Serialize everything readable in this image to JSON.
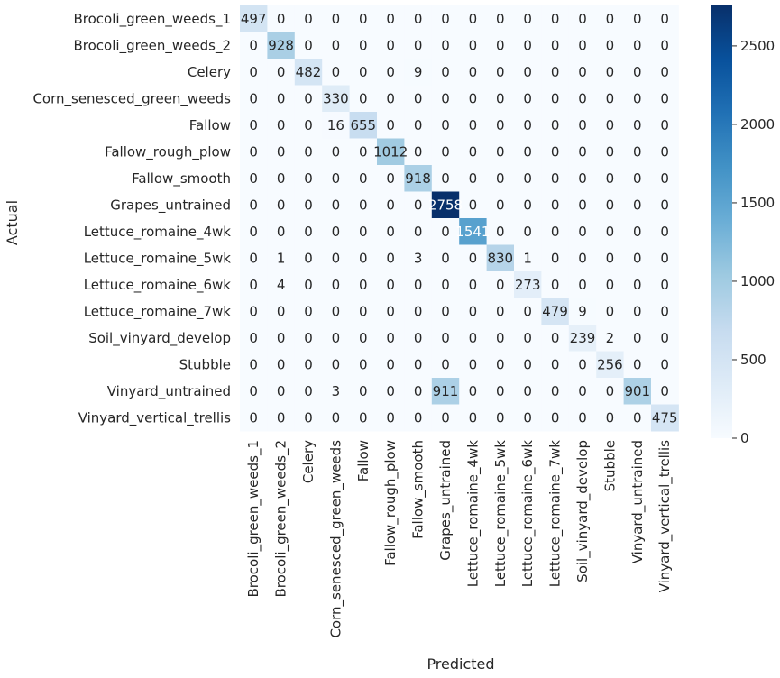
{
  "chart_data": {
    "type": "heatmap",
    "title": "",
    "xlabel": "Predicted",
    "ylabel": "Actual",
    "colormap": "Blues",
    "colors": {
      "low": "#f7fbff",
      "high": "#08306b",
      "text_dark": "#262626",
      "text_light": "#ffffff"
    },
    "vmin": 0,
    "vmax": 2758,
    "colorbar_ticks": [
      0,
      500,
      1000,
      1500,
      2000,
      2500
    ],
    "categories": [
      "Brocoli_green_weeds_1",
      "Brocoli_green_weeds_2",
      "Celery",
      "Corn_senesced_green_weeds",
      "Fallow",
      "Fallow_rough_plow",
      "Fallow_smooth",
      "Grapes_untrained",
      "Lettuce_romaine_4wk",
      "Lettuce_romaine_5wk",
      "Lettuce_romaine_6wk",
      "Lettuce_romaine_7wk",
      "Soil_vinyard_develop",
      "Stubble",
      "Vinyard_untrained",
      "Vinyard_vertical_trellis"
    ],
    "matrix": [
      [
        497,
        0,
        0,
        0,
        0,
        0,
        0,
        0,
        0,
        0,
        0,
        0,
        0,
        0,
        0,
        0
      ],
      [
        0,
        928,
        0,
        0,
        0,
        0,
        0,
        0,
        0,
        0,
        0,
        0,
        0,
        0,
        0,
        0
      ],
      [
        0,
        0,
        482,
        0,
        0,
        0,
        9,
        0,
        0,
        0,
        0,
        0,
        0,
        0,
        0,
        0
      ],
      [
        0,
        0,
        0,
        330,
        0,
        0,
        0,
        0,
        0,
        0,
        0,
        0,
        0,
        0,
        0,
        0
      ],
      [
        0,
        0,
        0,
        16,
        655,
        0,
        0,
        0,
        0,
        0,
        0,
        0,
        0,
        0,
        0,
        0
      ],
      [
        0,
        0,
        0,
        0,
        0,
        1012,
        0,
        0,
        0,
        0,
        0,
        0,
        0,
        0,
        0,
        0
      ],
      [
        0,
        0,
        0,
        0,
        0,
        0,
        918,
        0,
        0,
        0,
        0,
        0,
        0,
        0,
        0,
        0
      ],
      [
        0,
        0,
        0,
        0,
        0,
        0,
        0,
        2758,
        0,
        0,
        0,
        0,
        0,
        0,
        0,
        0
      ],
      [
        0,
        0,
        0,
        0,
        0,
        0,
        0,
        0,
        1541,
        0,
        0,
        0,
        0,
        0,
        0,
        0
      ],
      [
        0,
        1,
        0,
        0,
        0,
        0,
        3,
        0,
        0,
        830,
        1,
        0,
        0,
        0,
        0,
        0
      ],
      [
        0,
        4,
        0,
        0,
        0,
        0,
        0,
        0,
        0,
        0,
        273,
        0,
        0,
        0,
        0,
        0
      ],
      [
        0,
        0,
        0,
        0,
        0,
        0,
        0,
        0,
        0,
        0,
        0,
        479,
        9,
        0,
        0,
        0
      ],
      [
        0,
        0,
        0,
        0,
        0,
        0,
        0,
        0,
        0,
        0,
        0,
        0,
        239,
        2,
        0,
        0
      ],
      [
        0,
        0,
        0,
        0,
        0,
        0,
        0,
        0,
        0,
        0,
        0,
        0,
        0,
        256,
        0,
        0
      ],
      [
        0,
        0,
        0,
        3,
        0,
        0,
        0,
        911,
        0,
        0,
        0,
        0,
        0,
        0,
        901,
        0
      ],
      [
        0,
        0,
        0,
        0,
        0,
        0,
        0,
        0,
        0,
        0,
        0,
        0,
        0,
        0,
        0,
        475
      ]
    ]
  }
}
